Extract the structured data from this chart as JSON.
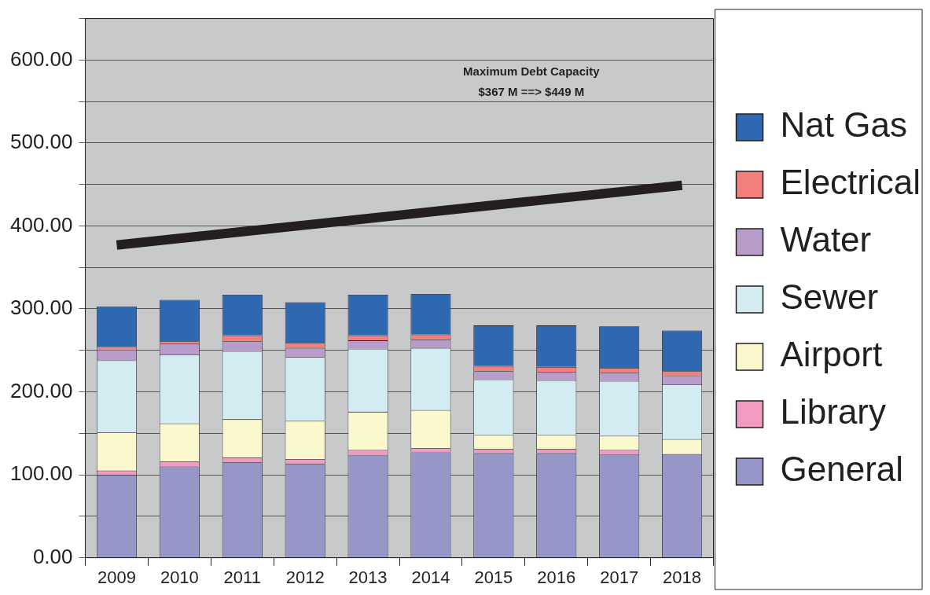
{
  "chart_data": {
    "type": "bar",
    "stacked": true,
    "categories": [
      "2009",
      "2010",
      "2011",
      "2012",
      "2013",
      "2014",
      "2015",
      "2016",
      "2017",
      "2018"
    ],
    "series": [
      {
        "name": "General",
        "color": "#9696c8",
        "values": [
          100,
          110,
          115,
          113,
          124,
          127,
          126,
          126,
          125,
          125
        ]
      },
      {
        "name": "Library",
        "color": "#f29ac2",
        "values": [
          5,
          6,
          6,
          6,
          6,
          5,
          5,
          5,
          5,
          0
        ]
      },
      {
        "name": "Airport",
        "color": "#fbf8cd",
        "values": [
          46,
          46,
          46,
          46,
          46,
          46,
          17,
          17,
          17,
          18
        ]
      },
      {
        "name": "Sewer",
        "color": "#d3ecf2",
        "values": [
          87,
          83,
          82,
          77,
          76,
          75,
          67,
          66,
          66,
          66
        ]
      },
      {
        "name": "Water",
        "color": "#b89cc9",
        "values": [
          13,
          13,
          12,
          11,
          10,
          10,
          10,
          10,
          10,
          10
        ]
      },
      {
        "name": "Electrical",
        "color": "#f37f7c",
        "values": [
          3,
          3,
          7,
          6,
          6,
          6,
          6,
          6,
          6,
          6
        ]
      },
      {
        "name": "Nat Gas",
        "color": "#2d68b1",
        "values": [
          49,
          50,
          49,
          49,
          49,
          49,
          49,
          50,
          50,
          49
        ]
      },
      {
        "type": "line",
        "color": "#231f20",
        "values": [
          377,
          385,
          393,
          401,
          409,
          417,
          425,
          433,
          441,
          449
        ]
      }
    ],
    "ylim": [
      0,
      650
    ],
    "yticks": [
      {
        "value": 0,
        "label": "0.00"
      },
      {
        "value": 50,
        "label": null
      },
      {
        "value": 100,
        "label": "100.00"
      },
      {
        "value": 150,
        "label": null
      },
      {
        "value": 200,
        "label": "200.00"
      },
      {
        "value": 250,
        "label": null
      },
      {
        "value": 300,
        "label": "300.00"
      },
      {
        "value": 350,
        "label": null
      },
      {
        "value": 400,
        "label": "400.00"
      },
      {
        "value": 450,
        "label": null
      },
      {
        "value": 500,
        "label": "500.00"
      },
      {
        "value": 550,
        "label": null
      },
      {
        "value": 600,
        "label": "600.00"
      },
      {
        "value": 650,
        "label": null
      }
    ],
    "grid": true,
    "legend": "right",
    "annotations": [
      "Maximum Debt Capacity\n$367 M ==> $449 M"
    ]
  }
}
